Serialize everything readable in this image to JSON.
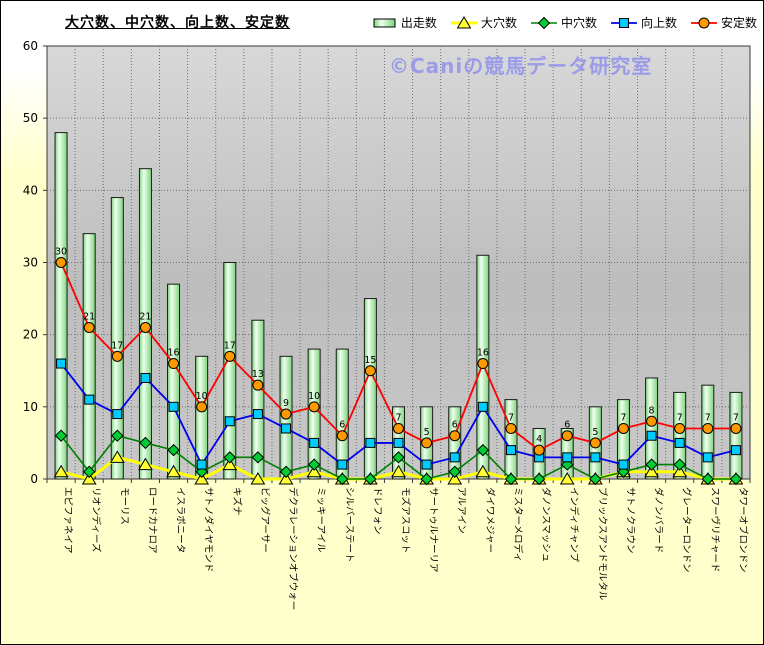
{
  "title": "大穴数、中穴数、向上数、安定数",
  "watermark": "©Caniの競馬データ研究室",
  "colors": {
    "bar_border": "#1a1a1a",
    "bar_light": "#f0fff0",
    "bar_green": "#7cd47c",
    "yellow_line": "#ffff00",
    "yellow_fill": "#ffff33",
    "green_line": "#008000",
    "green_fill": "#00cc33",
    "blue_line": "#0000ee",
    "blue_fill": "#00ccff",
    "red_line": "#ff0000",
    "orange_fill": "#ff9900",
    "plot_top": "#d8d8d8",
    "plot_mid": "#bdbdbd",
    "plot_bot": "#c8c8c8",
    "grid": "#6e6e6e",
    "axis": "#3a3a3a"
  },
  "legend": [
    {
      "label": "出走数",
      "marker": "bar"
    },
    {
      "label": "大穴数",
      "marker": "triangle"
    },
    {
      "label": "中穴数",
      "marker": "diamond"
    },
    {
      "label": "向上数",
      "marker": "square"
    },
    {
      "label": "安定数",
      "marker": "circle"
    }
  ],
  "chart_data": {
    "type": "bar",
    "subtype": "bar+line combo",
    "title": "大穴数、中穴数、向上数、安定数",
    "categories": [
      "エピファネイア",
      "リオンディーズ",
      "モーリス",
      "ロードカナロア",
      "イスラボニータ",
      "サトノダイヤモンド",
      "キズナ",
      "ビッグアーサー",
      "デクラレーションオブウォー",
      "ミッキーアイル",
      "シルバーステート",
      "ドレフォン",
      "モズアスコット",
      "サートゥルナーリア",
      "アルアイン",
      "ダイワメジャー",
      "ミスターメロディ",
      "ダノンスマッシュ",
      "インディチャンプ",
      "ブリックスアンドモルタル",
      "サトノクラウン",
      "ダノンバラード",
      "グレーターロンドン",
      "スワーヴリチャード",
      "タワーオブロンドン"
    ],
    "series": [
      {
        "name": "出走数",
        "type": "bar",
        "values": [
          48,
          34,
          39,
          43,
          27,
          17,
          30,
          22,
          17,
          18,
          18,
          25,
          10,
          10,
          10,
          31,
          11,
          7,
          7,
          10,
          11,
          14,
          12,
          13,
          12
        ]
      },
      {
        "name": "大穴数",
        "type": "line",
        "marker": "triangle",
        "values": [
          1,
          0,
          3,
          2,
          1,
          0,
          2,
          0,
          0,
          1,
          0,
          0,
          1,
          0,
          0,
          1,
          0,
          0,
          0,
          0,
          1,
          1,
          1,
          0,
          0
        ]
      },
      {
        "name": "中穴数",
        "type": "line",
        "marker": "diamond",
        "values": [
          6,
          1,
          6,
          5,
          4,
          1,
          3,
          3,
          1,
          2,
          0,
          0,
          3,
          0,
          1,
          4,
          0,
          0,
          2,
          0,
          1,
          2,
          2,
          0,
          0
        ]
      },
      {
        "name": "向上数",
        "type": "line",
        "marker": "square",
        "values": [
          16,
          11,
          9,
          14,
          10,
          2,
          8,
          9,
          7,
          5,
          2,
          5,
          5,
          2,
          3,
          10,
          4,
          3,
          3,
          3,
          2,
          6,
          5,
          3,
          4
        ]
      },
      {
        "name": "安定数",
        "type": "line",
        "marker": "circle",
        "labeled": true,
        "values": [
          30,
          21,
          17,
          21,
          16,
          10,
          17,
          13,
          9,
          10,
          6,
          15,
          7,
          5,
          6,
          16,
          7,
          4,
          6,
          5,
          7,
          8,
          7,
          7,
          7
        ]
      }
    ],
    "ylim": [
      0,
      60
    ],
    "yticks": [
      0,
      10,
      20,
      30,
      40,
      50,
      60
    ],
    "grid": "both",
    "legend_position": "top"
  }
}
